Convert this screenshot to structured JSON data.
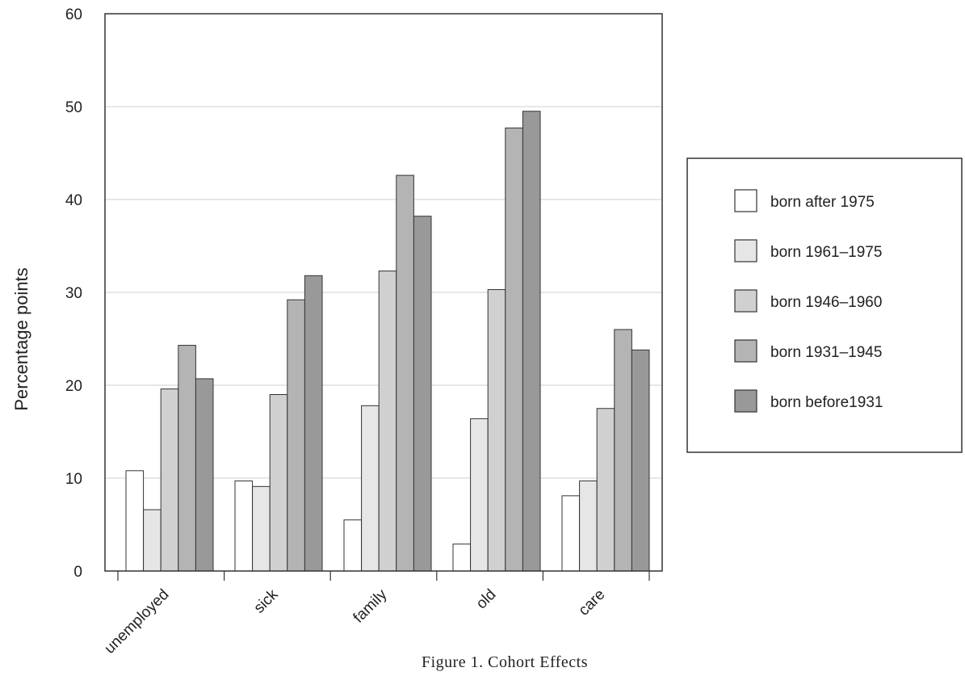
{
  "chart_data": {
    "type": "bar",
    "categories": [
      "unemployed",
      "sick",
      "family",
      "old",
      "care"
    ],
    "series": [
      {
        "name": "born after 1975",
        "color": "#ffffff",
        "values": [
          10.8,
          9.7,
          5.5,
          2.9,
          8.1
        ]
      },
      {
        "name": "born 1961–1975",
        "color": "#e6e6e6",
        "values": [
          6.6,
          9.1,
          17.8,
          16.4,
          9.7
        ]
      },
      {
        "name": "born 1946–1960",
        "color": "#d0d0d0",
        "values": [
          19.6,
          19.0,
          32.3,
          30.3,
          17.5
        ]
      },
      {
        "name": "born 1931–1945",
        "color": "#b4b4b4",
        "values": [
          24.3,
          29.2,
          42.6,
          47.7,
          26.0
        ]
      },
      {
        "name": "born before1931",
        "color": "#999999",
        "values": [
          20.7,
          31.8,
          38.2,
          49.5,
          23.8
        ]
      }
    ],
    "ylabel": "Percentage points",
    "ylim": [
      0,
      60
    ],
    "yticks": [
      0,
      10,
      20,
      30,
      40,
      50,
      60
    ],
    "grid": true,
    "legend_position": "right",
    "caption": "Figure 1. Cohort Effects"
  }
}
